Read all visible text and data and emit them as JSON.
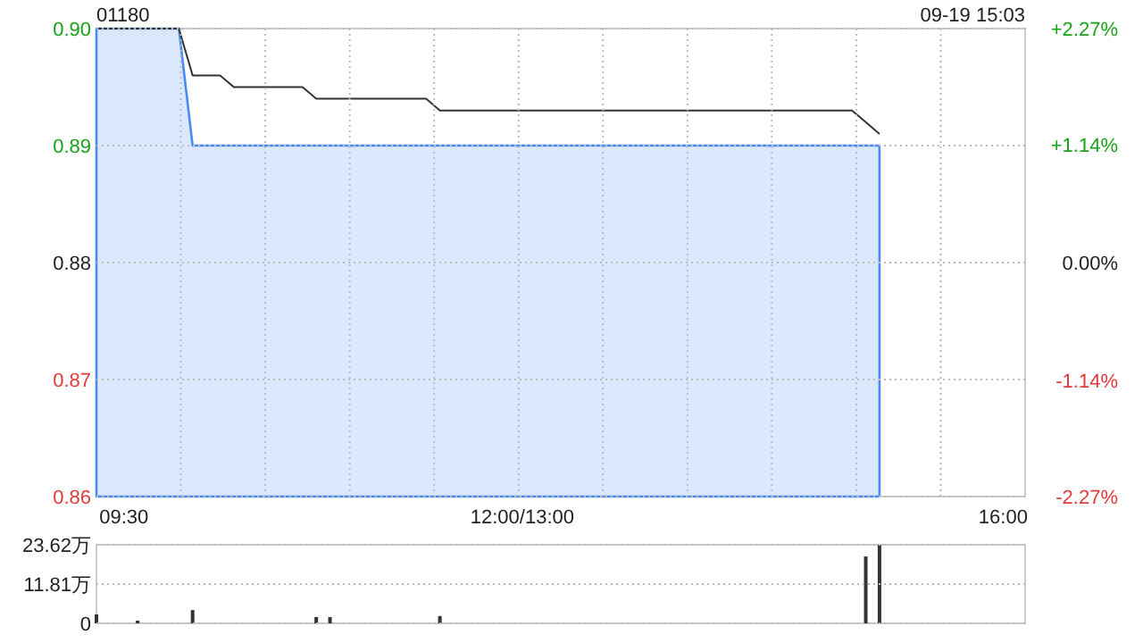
{
  "chart_data": [
    {
      "type": "line",
      "title": "01180",
      "annotations": [
        "09-19 15:03"
      ],
      "categories": [
        null,
        null,
        "09:30",
        null,
        null,
        null,
        null,
        null,
        null,
        null,
        null,
        null,
        null,
        null,
        null,
        null,
        null,
        null,
        null,
        null,
        null,
        null,
        null,
        null,
        null,
        null,
        null,
        null,
        null,
        null,
        null,
        "12:00/13:00",
        null,
        null,
        null,
        null,
        null,
        null,
        null,
        null,
        null,
        null,
        null,
        null,
        null,
        null,
        null,
        null,
        null,
        null,
        null,
        null,
        null,
        null,
        null,
        null,
        null,
        null,
        null,
        null,
        null,
        null,
        null,
        null,
        null,
        null,
        "16:00",
        null
      ],
      "ylim": [
        0.86,
        0.9
      ],
      "yticks": [
        0.86,
        0.87,
        0.88,
        0.89,
        {
          "value": 0.9,
          "label": "0.90"
        }
      ],
      "y2lim": [
        -2.27,
        2.27
      ],
      "y2ticks": [
        {
          "value": -2.27,
          "label": "-2.27%"
        },
        {
          "value": -1.14,
          "label": "-1.14%"
        },
        {
          "value": 0,
          "label": "0.00%"
        },
        {
          "value": 1.14,
          "label": "+1.14%"
        },
        {
          "value": 2.27,
          "label": "+2.27%"
        }
      ],
      "grid": true,
      "series": [
        {
          "type": "area",
          "color": "#4a8af4",
          "values": [
            0.9,
            0.9,
            0.9,
            0.9,
            0.9,
            0.9,
            0.9,
            0.89,
            0.89,
            0.89,
            0.89,
            0.89,
            0.89,
            0.89,
            0.89,
            0.89,
            0.89,
            0.89,
            0.89,
            0.89,
            0.89,
            0.89,
            0.89,
            0.89,
            0.89,
            0.89,
            0.89,
            0.89,
            0.89,
            0.89,
            0.89,
            0.89,
            0.89,
            0.89,
            0.89,
            0.89,
            0.89,
            0.89,
            0.89,
            0.89,
            0.89,
            0.89,
            0.89,
            0.89,
            0.89,
            0.89,
            0.89,
            0.89,
            0.89,
            0.89,
            0.89,
            0.89,
            0.89,
            0.89,
            0.89,
            0.89,
            0.89,
            0.89,
            null,
            null,
            null,
            null,
            null,
            null,
            null,
            null,
            null,
            null
          ]
        },
        {
          "color": "#333333",
          "values": [
            0.9,
            0.9,
            0.9,
            0.9,
            0.9,
            0.9,
            0.9,
            0.896,
            0.896,
            0.896,
            0.895,
            0.895,
            0.895,
            0.895,
            0.895,
            0.895,
            0.894,
            0.894,
            0.894,
            0.894,
            0.894,
            0.894,
            0.894,
            0.894,
            0.894,
            0.893,
            0.893,
            0.893,
            0.893,
            0.893,
            0.893,
            0.893,
            0.893,
            0.893,
            0.893,
            0.893,
            0.893,
            0.893,
            0.893,
            0.893,
            0.893,
            0.893,
            0.893,
            0.893,
            0.893,
            0.893,
            0.893,
            0.893,
            0.893,
            0.893,
            0.893,
            0.893,
            0.893,
            0.893,
            0.893,
            0.893,
            0.892,
            0.891,
            null,
            null,
            null,
            null,
            null,
            null,
            null,
            null,
            null,
            null
          ]
        }
      ]
    },
    {
      "type": "bar",
      "categories": [
        null,
        null,
        null,
        null,
        null,
        null,
        null,
        null,
        null,
        null,
        null,
        null,
        null,
        null,
        null,
        null,
        null,
        null,
        null,
        null,
        null,
        null,
        null,
        null,
        null,
        null,
        null,
        null,
        null,
        null,
        null,
        null,
        null,
        null,
        null,
        null,
        null,
        null,
        null,
        null,
        null,
        null,
        null,
        null,
        null,
        null,
        null,
        null,
        null,
        null,
        null,
        null,
        null,
        null,
        null,
        null,
        null,
        null,
        null,
        null,
        null,
        null,
        null,
        null,
        null,
        null,
        null,
        null
      ],
      "ylim": [
        0,
        23.62
      ],
      "yticks": [
        0,
        {
          "value": 11.81,
          "label": "11.81万"
        },
        {
          "value": 23.62,
          "label": "23.62万"
        }
      ],
      "grid": "y",
      "tick_labels": "y",
      "series": [
        {
          "color": "#333333",
          "values": [
            2.7,
            null,
            null,
            0.8,
            null,
            null,
            null,
            4.0,
            null,
            null,
            null,
            null,
            null,
            null,
            null,
            null,
            1.9,
            1.9,
            null,
            null,
            null,
            null,
            null,
            null,
            null,
            2.2,
            null,
            null,
            null,
            null,
            null,
            null,
            null,
            null,
            null,
            null,
            null,
            null,
            null,
            null,
            null,
            null,
            null,
            null,
            null,
            null,
            null,
            null,
            null,
            null,
            null,
            null,
            null,
            null,
            null,
            null,
            20.1,
            23.6,
            null,
            null,
            null,
            null,
            null,
            null,
            null,
            null,
            null,
            null
          ]
        }
      ]
    }
  ]
}
